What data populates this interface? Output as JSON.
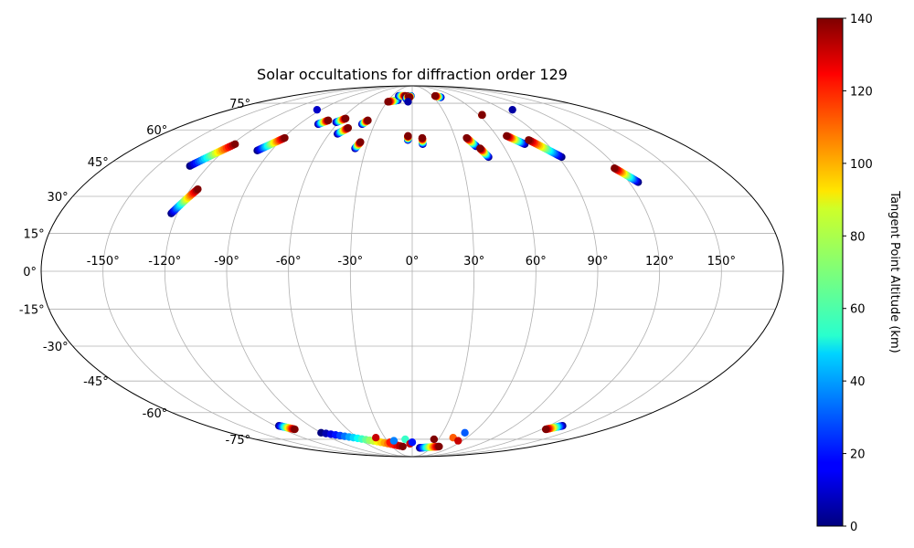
{
  "chart_data": {
    "type": "scatter",
    "projection": "mollweide",
    "title": "Solar occultations for diffraction order 129",
    "xlabel": "",
    "ylabel": "",
    "grid": true,
    "colormap": "jet",
    "colorbar": {
      "label": "Tangent Point Altitude (km)",
      "range": [
        0,
        140
      ],
      "ticks": [
        "0",
        "20",
        "40",
        "60",
        "80",
        "100",
        "120",
        "140"
      ]
    },
    "lon_ticks": [
      "-150°",
      "-120°",
      "-90°",
      "-60°",
      "-30°",
      "0°",
      "30°",
      "60°",
      "90°",
      "120°",
      "150°"
    ],
    "lat_ticks": [
      "-75°",
      "-60°",
      "-45°",
      "-30°",
      "-15°",
      "0°",
      "15°",
      "30°",
      "45°",
      "60°",
      "75°"
    ],
    "tracks": [
      {
        "lon0": -131,
        "lat0": 43,
        "lon1": -118,
        "lat1": 53
      },
      {
        "lon0": -123,
        "lat0": 23,
        "lon1": -116,
        "lat1": 33
      },
      {
        "lon0": -99,
        "lat0": 50,
        "lon1": -89,
        "lat1": 56
      },
      {
        "lon0": -75,
        "lat0": 63,
        "lon1": -70,
        "lat1": 65
      },
      {
        "lon0": -62,
        "lat0": 64,
        "lon1": -57,
        "lat1": 66
      },
      {
        "lon0": -54,
        "lat0": 58,
        "lon1": -49,
        "lat1": 61
      },
      {
        "lon0": -40,
        "lat0": 63,
        "lon1": -37,
        "lat1": 65
      },
      {
        "lon0": -37,
        "lat0": 51,
        "lon1": -35,
        "lat1": 54
      },
      {
        "lon0": -18,
        "lat0": 77,
        "lon1": -29,
        "lat1": 76
      },
      {
        "lon0": -20,
        "lat0": 80,
        "lon1": -10,
        "lat1": 80
      },
      {
        "lon0": -8,
        "lat0": 78,
        "lon1": -5,
        "lat1": 80
      },
      {
        "lon0": -2,
        "lat0": 80,
        "lon1": -4,
        "lat1": 79
      },
      {
        "lon0": -3,
        "lat0": 55,
        "lon1": -3,
        "lat1": 57
      },
      {
        "lon0": 7,
        "lat0": 53,
        "lon1": 7,
        "lat1": 56
      },
      {
        "lon0": 40,
        "lat0": 79,
        "lon1": 34,
        "lat1": 80
      },
      {
        "lon0": 42,
        "lat0": 52,
        "lon1": 38,
        "lat1": 56
      },
      {
        "lon0": 47,
        "lat0": 47,
        "lon1": 44,
        "lat1": 51
      },
      {
        "lon0": 63,
        "lat0": 68,
        "lon1": 63,
        "lat1": 68
      },
      {
        "lon0": 75,
        "lat0": 53,
        "lon1": 67,
        "lat1": 57
      },
      {
        "lon0": 92,
        "lat0": 47,
        "lon1": 80,
        "lat1": 55
      },
      {
        "lon0": 125,
        "lat0": 36,
        "lon1": 118,
        "lat1": 42
      },
      {
        "lon0": -117,
        "lat0": -67,
        "lon1": -109,
        "lat1": -69
      },
      {
        "lon0": -90,
        "lat0": -71,
        "lon1": -14,
        "lat1": -80
      },
      {
        "lon0": 12,
        "lat0": -81,
        "lon1": 40,
        "lat1": -80
      },
      {
        "lon0": 132,
        "lat0": -67,
        "lon1": 124,
        "lat1": -69
      }
    ],
    "points": [
      {
        "lon": -94,
        "lat": 71,
        "alt": 10
      },
      {
        "lon": -5,
        "lat": 76,
        "alt": 5
      },
      {
        "lon": 99,
        "lat": 71,
        "alt": 5
      },
      {
        "lon": -40,
        "lat": -74,
        "alt": 130
      },
      {
        "lon": -28,
        "lat": -77,
        "alt": 120
      },
      {
        "lon": -22,
        "lat": -76,
        "alt": 35
      },
      {
        "lon": -8,
        "lat": -75,
        "alt": 60
      },
      {
        "lon": -3,
        "lat": -78,
        "alt": 130
      },
      {
        "lon": 0,
        "lat": -77,
        "alt": 20
      },
      {
        "lon": 25,
        "lat": -75,
        "alt": 140
      },
      {
        "lon": 45,
        "lat": -74,
        "alt": 110
      },
      {
        "lon": 55,
        "lat": -76,
        "alt": 130
      },
      {
        "lon": 52,
        "lat": -71,
        "alt": 30
      }
    ]
  }
}
